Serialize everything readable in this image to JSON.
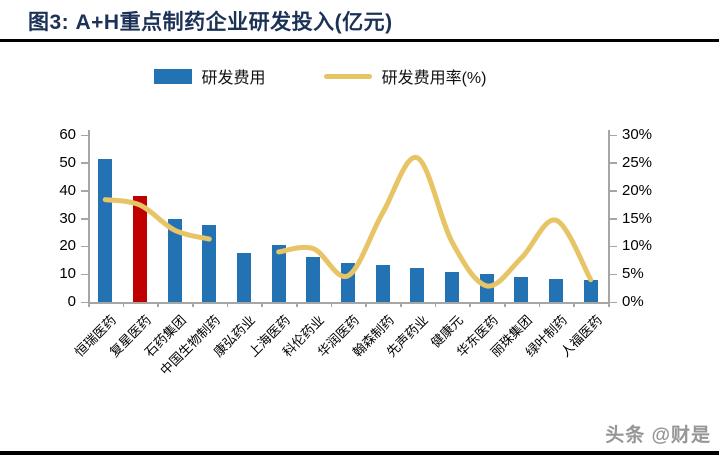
{
  "title": "图3:  A+H重点制药企业研发投入(亿元)",
  "watermark": "头条 @财是",
  "legend": {
    "bar_label": "研发费用",
    "line_label": "研发费用率(%)"
  },
  "colors": {
    "bar_blue": "#2272b4",
    "bar_highlight_red": "#c00000",
    "line_gold": "#e7c465",
    "title_navy": "#1b3156",
    "axis_gray": "#a6a6a6"
  },
  "chart_data": {
    "type": "bar+line combo",
    "categories": [
      "恒瑞医药",
      "复星医药",
      "石药集团",
      "中国生物制药",
      "康弘药业",
      "上海医药",
      "科伦药业",
      "华润医药",
      "翰森制药",
      "先声药业",
      "健康元",
      "华东医药",
      "丽珠集团",
      "绿叶制药",
      "人福医药"
    ],
    "series": [
      {
        "name": "研发费用",
        "type": "bar",
        "axis": "left",
        "color": "#2272b4",
        "highlight": {
          "index": 1,
          "color": "#c00000"
        },
        "values": [
          51.5,
          38,
          30,
          27.5,
          17.5,
          20.5,
          16,
          14,
          13.3,
          12.3,
          10.8,
          9.9,
          9.1,
          8.4,
          7.9
        ]
      },
      {
        "name": "研发费用率(%)",
        "type": "line",
        "axis": "right",
        "color": "#e7c465",
        "smooth": true,
        "values": [
          18.4,
          17.4,
          12.9,
          11.3,
          null,
          9.0,
          9.6,
          4.7,
          16.0,
          25.9,
          10.8,
          2.9,
          7.9,
          14.7,
          4.0
        ]
      }
    ],
    "left_axis": {
      "ticks": [
        "0",
        "10",
        "20",
        "30",
        "40",
        "50",
        "60"
      ],
      "range": [
        0,
        60
      ]
    },
    "right_axis": {
      "ticks": [
        "0%",
        "5%",
        "10%",
        "15%",
        "20%",
        "25%",
        "30%"
      ],
      "range": [
        0,
        30
      ]
    },
    "grid": false,
    "legend_position": "top-center"
  }
}
